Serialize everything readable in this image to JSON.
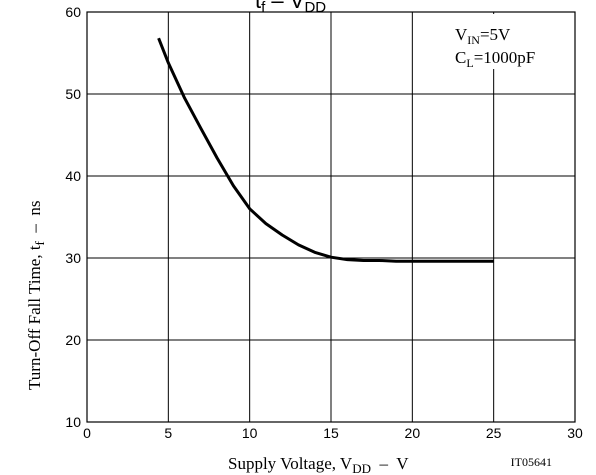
{
  "chart_data": {
    "type": "line",
    "title_fragment": {
      "main": "t",
      "sub": "f",
      "mid": " – V",
      "sub2": "DD"
    },
    "xlabel": {
      "main": "Supply Voltage, V",
      "sub": "DD",
      "unit": "  –  V"
    },
    "ylabel": {
      "main": "Turn-Off Fall Time, t",
      "sub": "f",
      "unit": "  –  ns"
    },
    "xlim": [
      0,
      30
    ],
    "ylim": [
      10,
      60
    ],
    "x_ticks": [
      0,
      5,
      10,
      15,
      20,
      25,
      30
    ],
    "y_ticks": [
      10,
      20,
      30,
      40,
      50,
      60
    ],
    "grid": true,
    "annotations": [
      {
        "main": "V",
        "sub": "IN",
        "rest": "=5V"
      },
      {
        "main": "C",
        "sub": "L",
        "rest": "=1000pF"
      }
    ],
    "figure_id": "IT05641",
    "series": [
      {
        "color": "#000000",
        "x": [
          4.4,
          5.0,
          6.0,
          7.0,
          8.0,
          9.0,
          10.0,
          11.0,
          12.0,
          13.0,
          14.0,
          15.0,
          16.0,
          17.0,
          18.0,
          19.0,
          20.0,
          21.0,
          22.0,
          23.0,
          24.0,
          25.0
        ],
        "y": [
          56.8,
          53.8,
          49.5,
          45.8,
          42.2,
          38.8,
          36.0,
          34.2,
          32.8,
          31.6,
          30.7,
          30.1,
          29.8,
          29.7,
          29.7,
          29.6,
          29.6,
          29.6,
          29.6,
          29.6,
          29.6,
          29.6
        ]
      }
    ]
  }
}
